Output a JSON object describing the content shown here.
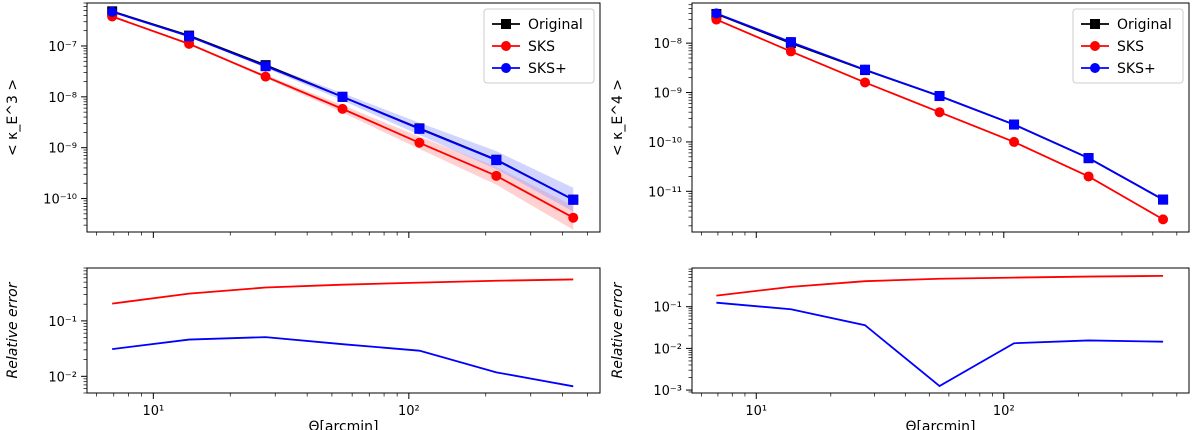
{
  "chart_data": [
    {
      "type": "line",
      "panel": "left-top",
      "title": "",
      "xlabel": "",
      "ylabel": "< κ_E^3 >",
      "xscale": "log",
      "yscale": "log",
      "xlim": [
        5.5,
        560
      ],
      "ylim": [
        2.2e-11,
        7e-07
      ],
      "x": [
        6.9,
        13.8,
        27.5,
        55,
        110,
        220,
        440
      ],
      "series": [
        {
          "name": "Original",
          "color": "#000000",
          "marker": "square",
          "values": [
            4.8e-07,
            1.6e-07,
            4.2e-08,
            1e-08,
            2.4e-09,
            5.8e-10,
            9.5e-11
          ]
        },
        {
          "name": "SKS",
          "color": "#ff0000",
          "marker": "circle",
          "values": [
            3.8e-07,
            1.1e-07,
            2.5e-08,
            5.8e-09,
            1.25e-09,
            2.8e-10,
            4.2e-11
          ]
        },
        {
          "name": "SKS+",
          "color": "#0000ff",
          "marker": "circle",
          "values": [
            4.7e-07,
            1.55e-07,
            4e-08,
            1e-08,
            2.35e-09,
            5.7e-10,
            9.5e-11
          ]
        }
      ],
      "yticks": [
        {
          "v": 1e-10,
          "label": "10⁻¹⁰"
        },
        {
          "v": 1e-09,
          "label": "10⁻⁹"
        },
        {
          "v": 1e-08,
          "label": "10⁻⁸"
        },
        {
          "v": 1e-07,
          "label": "10⁻⁷"
        }
      ],
      "legend": {
        "position": "upper-right",
        "entries": [
          "Original",
          "SKS",
          "SKS+"
        ]
      },
      "grid": false
    },
    {
      "type": "line",
      "panel": "left-bottom",
      "xlabel": "Θ[arcmin]",
      "ylabel": "Relative error",
      "xscale": "log",
      "yscale": "log",
      "xlim": [
        5.5,
        560
      ],
      "ylim": [
        0.005,
        0.9
      ],
      "x": [
        6.9,
        13.8,
        27.5,
        55,
        110,
        220,
        440
      ],
      "series": [
        {
          "name": "SKS",
          "color": "#ff0000",
          "values": [
            0.205,
            0.31,
            0.4,
            0.45,
            0.49,
            0.53,
            0.56
          ]
        },
        {
          "name": "SKS+",
          "color": "#0000ff",
          "values": [
            0.031,
            0.046,
            0.051,
            0.038,
            0.029,
            0.0118,
            0.0066
          ]
        }
      ],
      "xticks": [
        {
          "v": 10,
          "label": "10¹"
        },
        {
          "v": 100,
          "label": "10²"
        }
      ],
      "yticks": [
        {
          "v": 0.01,
          "label": "10⁻²"
        },
        {
          "v": 0.1,
          "label": "10⁻¹"
        }
      ],
      "grid": false
    },
    {
      "type": "line",
      "panel": "right-top",
      "xlabel": "",
      "ylabel": "< κ_E^4 >",
      "xscale": "log",
      "yscale": "log",
      "xlim": [
        5.5,
        560
      ],
      "ylim": [
        1.5e-12,
        6.5e-08
      ],
      "x": [
        6.9,
        13.8,
        27.5,
        55,
        110,
        220,
        440
      ],
      "series": [
        {
          "name": "Original",
          "color": "#000000",
          "marker": "square",
          "values": [
            3.9e-08,
            1e-08,
            2.85e-09,
            8.5e-10,
            2.25e-10,
            4.7e-11,
            6.8e-12
          ]
        },
        {
          "name": "SKS",
          "color": "#ff0000",
          "marker": "circle",
          "values": [
            3e-08,
            6.8e-09,
            1.6e-09,
            4e-10,
            1e-10,
            2e-11,
            2.7e-12
          ]
        },
        {
          "name": "SKS+",
          "color": "#0000ff",
          "marker": "circle",
          "values": [
            4e-08,
            1.05e-08,
            2.9e-09,
            8.5e-10,
            2.25e-10,
            4.7e-11,
            6.8e-12
          ]
        }
      ],
      "yticks": [
        {
          "v": 1e-11,
          "label": "10⁻¹¹"
        },
        {
          "v": 1e-10,
          "label": "10⁻¹⁰"
        },
        {
          "v": 1e-09,
          "label": "10⁻⁹"
        },
        {
          "v": 1e-08,
          "label": "10⁻⁸"
        }
      ],
      "legend": {
        "position": "upper-right",
        "entries": [
          "Original",
          "SKS",
          "SKS+"
        ]
      },
      "grid": false
    },
    {
      "type": "line",
      "panel": "right-bottom",
      "xlabel": "Θ[arcmin]",
      "ylabel": "Relative error",
      "xscale": "log",
      "yscale": "log",
      "xlim": [
        5.5,
        560
      ],
      "ylim": [
        0.00085,
        0.85
      ],
      "x": [
        6.9,
        13.8,
        27.5,
        55,
        110,
        220,
        440
      ],
      "series": [
        {
          "name": "SKS",
          "color": "#ff0000",
          "values": [
            0.185,
            0.3,
            0.41,
            0.47,
            0.5,
            0.53,
            0.55
          ]
        },
        {
          "name": "SKS+",
          "color": "#0000ff",
          "values": [
            0.125,
            0.087,
            0.036,
            0.00125,
            0.0133,
            0.0155,
            0.0145
          ]
        }
      ],
      "xticks": [
        {
          "v": 10,
          "label": "10¹"
        },
        {
          "v": 100,
          "label": "10²"
        }
      ],
      "yticks": [
        {
          "v": 0.001,
          "label": "10⁻³"
        },
        {
          "v": 0.01,
          "label": "10⁻²"
        },
        {
          "v": 0.1,
          "label": "10⁻¹"
        }
      ],
      "grid": false
    }
  ]
}
